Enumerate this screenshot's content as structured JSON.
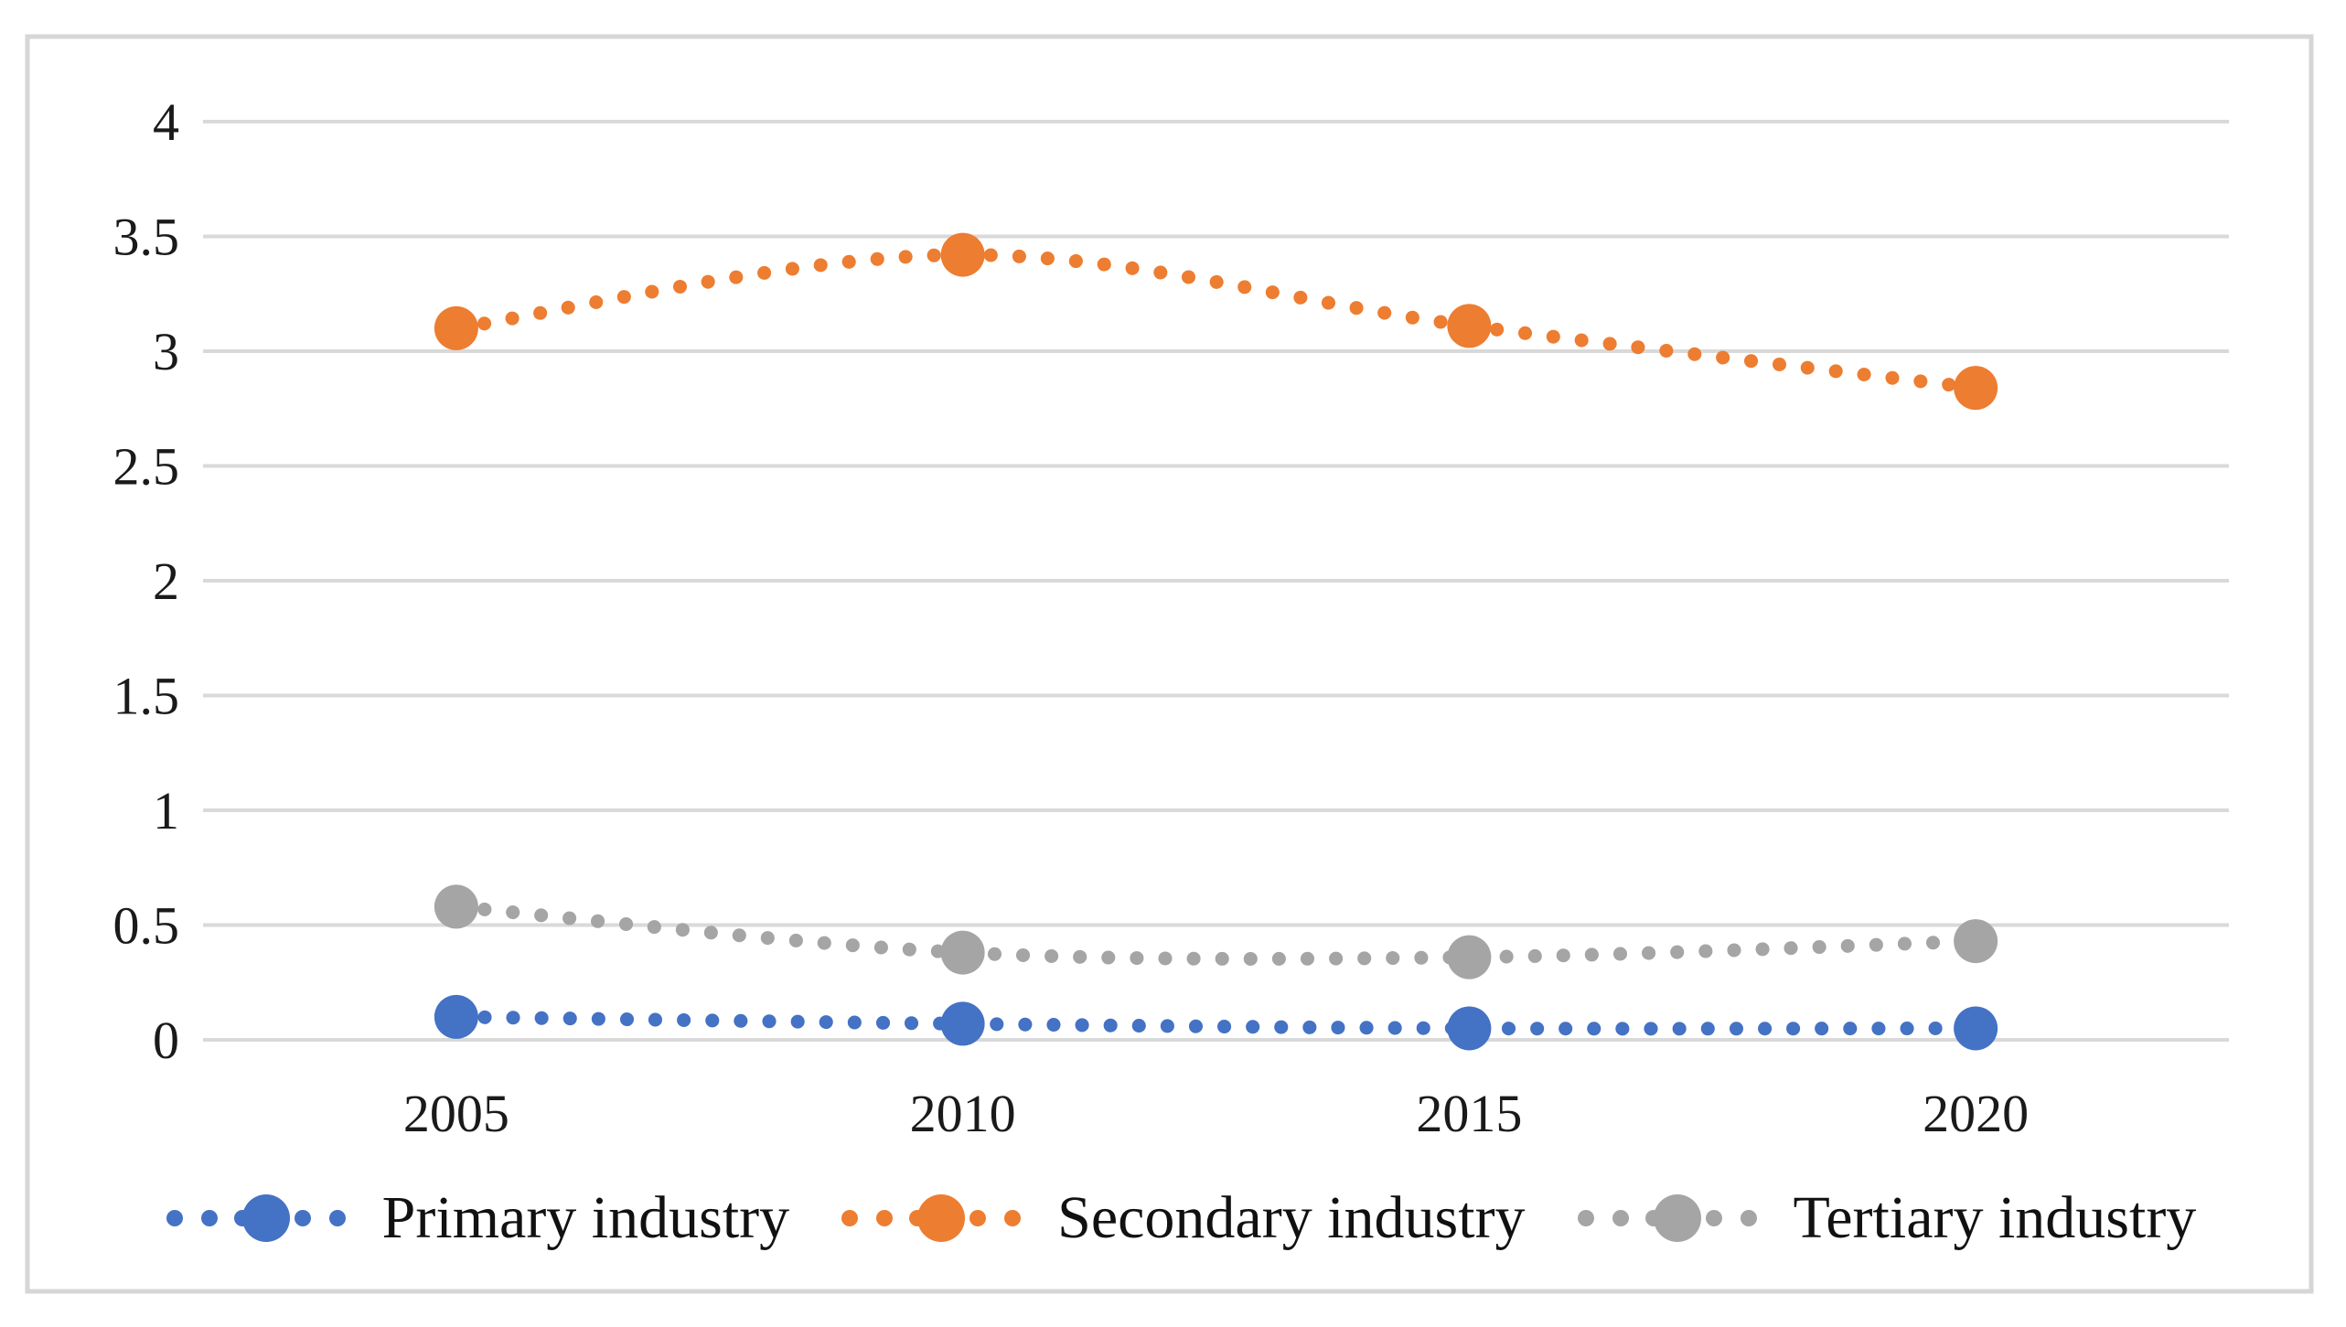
{
  "figure": {
    "background": "#FFFFFF",
    "frame_border_color": "#D6D6D6"
  },
  "chart_data": {
    "type": "line",
    "title": "",
    "xlabel": "",
    "ylabel": "",
    "categories": [
      "2005",
      "2010",
      "2015",
      "2020"
    ],
    "series": [
      {
        "name": "Primary industry",
        "color": "#4472C4",
        "values": [
          0.1,
          0.07,
          0.05,
          0.05
        ]
      },
      {
        "name": "Secondary industry",
        "color": "#ED7D31",
        "values": [
          3.1,
          3.42,
          3.11,
          2.84
        ]
      },
      {
        "name": "Tertiary industry",
        "color": "#A5A5A5",
        "values": [
          0.58,
          0.38,
          0.36,
          0.43
        ]
      }
    ],
    "ylim": [
      0,
      4
    ],
    "yticks": [
      0,
      0.5,
      1,
      1.5,
      2,
      2.5,
      3,
      3.5,
      4
    ],
    "ytick_labels": [
      "0",
      "0.5",
      "1",
      "1.5",
      "2",
      "2.5",
      "3",
      "3.5",
      "4"
    ],
    "grid": true,
    "gridline_color": "#D9D9D9",
    "tick_label_color": "#1A1A1A",
    "line_style": "dotted",
    "marker": "circle",
    "smooth": true,
    "legend_position": "bottom"
  }
}
